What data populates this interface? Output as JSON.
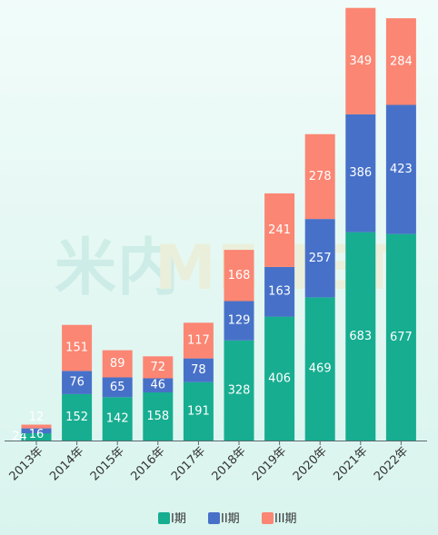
{
  "watermark": {
    "part1": "米内",
    "part2": "MENET"
  },
  "chart_data": {
    "type": "bar",
    "stacked": true,
    "categories": [
      "2013年",
      "2014年",
      "2015年",
      "2016年",
      "2017年",
      "2018年",
      "2019年",
      "2020年",
      "2021年",
      "2022年"
    ],
    "series": [
      {
        "name": "I期",
        "color": "#17ad90",
        "values": [
          24,
          152,
          142,
          158,
          191,
          328,
          406,
          469,
          683,
          677
        ]
      },
      {
        "name": "II期",
        "color": "#4771c8",
        "values": [
          16,
          76,
          65,
          46,
          78,
          129,
          163,
          257,
          386,
          423
        ]
      },
      {
        "name": "III期",
        "color": "#fb8673",
        "values": [
          12,
          151,
          89,
          72,
          117,
          168,
          241,
          278,
          349,
          284
        ]
      }
    ],
    "ylim": [
      0,
      1420
    ],
    "grid": false,
    "legend_position": "bottom-center"
  }
}
